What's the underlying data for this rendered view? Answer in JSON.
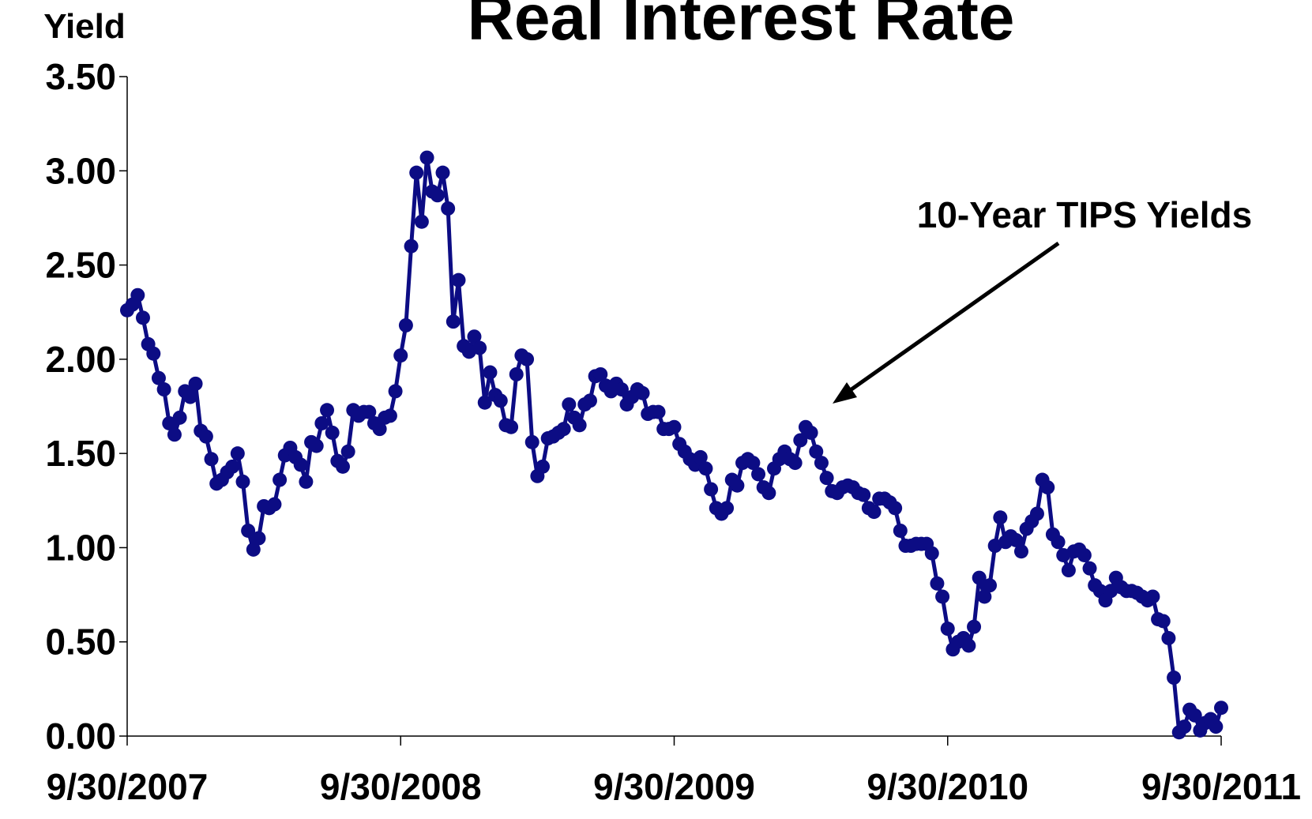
{
  "chart_data": {
    "type": "line",
    "title": "Real Interest Rate",
    "y_label": "Yield",
    "annotation": "10-Year TIPS Yields",
    "categories": [
      "9/30/2007",
      null,
      null,
      null,
      null,
      null,
      null,
      null,
      null,
      null,
      null,
      null,
      null,
      null,
      null,
      null,
      null,
      null,
      null,
      null,
      null,
      null,
      null,
      null,
      null,
      null,
      null,
      null,
      null,
      null,
      null,
      null,
      null,
      null,
      null,
      null,
      null,
      null,
      null,
      null,
      null,
      null,
      null,
      null,
      null,
      null,
      null,
      null,
      null,
      null,
      null,
      null,
      "9/30/2008",
      null,
      null,
      null,
      null,
      null,
      null,
      null,
      null,
      null,
      null,
      null,
      null,
      null,
      null,
      null,
      null,
      null,
      null,
      null,
      null,
      null,
      null,
      null,
      null,
      null,
      null,
      null,
      null,
      null,
      null,
      null,
      null,
      null,
      null,
      null,
      null,
      null,
      null,
      null,
      null,
      null,
      null,
      null,
      null,
      null,
      null,
      null,
      null,
      null,
      null,
      null,
      "9/30/2009",
      null,
      null,
      null,
      null,
      null,
      null,
      null,
      null,
      null,
      null,
      null,
      null,
      null,
      null,
      null,
      null,
      null,
      null,
      null,
      null,
      null,
      null,
      null,
      null,
      null,
      null,
      null,
      null,
      null,
      null,
      null,
      null,
      null,
      null,
      null,
      null,
      null,
      null,
      null,
      null,
      null,
      null,
      null,
      null,
      null,
      null,
      null,
      null,
      null,
      null,
      null,
      "9/30/2010",
      null,
      null,
      null,
      null,
      null,
      null,
      null,
      null,
      null,
      null,
      null,
      null,
      null,
      null,
      null,
      null,
      null,
      null,
      null,
      null,
      null,
      null,
      null,
      null,
      null,
      null,
      null,
      null,
      null,
      null,
      null,
      null,
      null,
      null,
      null,
      null,
      null,
      null,
      null,
      null,
      null,
      null,
      null,
      null,
      null,
      null,
      null,
      null,
      null,
      null,
      null,
      "9/30/2011"
    ],
    "series": [
      {
        "name": "10-Year TIPS Yields",
        "color": "#0c0c84",
        "values": [
          2.26,
          2.29,
          2.34,
          2.22,
          2.08,
          2.03,
          1.9,
          1.84,
          1.66,
          1.6,
          1.69,
          1.83,
          1.8,
          1.87,
          1.62,
          1.59,
          1.47,
          1.34,
          1.36,
          1.4,
          1.43,
          1.5,
          1.35,
          1.09,
          0.99,
          1.05,
          1.22,
          1.21,
          1.23,
          1.36,
          1.49,
          1.53,
          1.48,
          1.44,
          1.35,
          1.56,
          1.54,
          1.66,
          1.73,
          1.61,
          1.46,
          1.43,
          1.51,
          1.73,
          1.7,
          1.72,
          1.72,
          1.66,
          1.63,
          1.69,
          1.7,
          1.83,
          2.02,
          2.18,
          2.6,
          2.99,
          2.73,
          3.07,
          2.89,
          2.87,
          2.99,
          2.8,
          2.2,
          2.42,
          2.07,
          2.04,
          2.12,
          2.06,
          1.77,
          1.93,
          1.81,
          1.78,
          1.65,
          1.64,
          1.92,
          2.02,
          2.0,
          1.56,
          1.38,
          1.43,
          1.58,
          1.59,
          1.61,
          1.63,
          1.76,
          1.69,
          1.65,
          1.76,
          1.78,
          1.91,
          1.92,
          1.86,
          1.83,
          1.87,
          1.84,
          1.76,
          1.8,
          1.84,
          1.82,
          1.71,
          1.72,
          1.72,
          1.63,
          1.63,
          1.64,
          1.55,
          1.51,
          1.47,
          1.44,
          1.48,
          1.42,
          1.31,
          1.21,
          1.18,
          1.21,
          1.36,
          1.33,
          1.45,
          1.47,
          1.45,
          1.39,
          1.32,
          1.29,
          1.42,
          1.47,
          1.51,
          1.47,
          1.45,
          1.57,
          1.64,
          1.61,
          1.51,
          1.45,
          1.37,
          1.3,
          1.29,
          1.32,
          1.33,
          1.32,
          1.29,
          1.28,
          1.21,
          1.19,
          1.26,
          1.26,
          1.24,
          1.21,
          1.09,
          1.01,
          1.01,
          1.02,
          1.02,
          1.02,
          0.97,
          0.81,
          0.74,
          0.57,
          0.46,
          0.5,
          0.52,
          0.48,
          0.58,
          0.84,
          0.74,
          0.8,
          1.01,
          1.16,
          1.03,
          1.06,
          1.04,
          0.98,
          1.1,
          1.14,
          1.18,
          1.36,
          1.32,
          1.07,
          1.03,
          0.96,
          0.88,
          0.98,
          0.99,
          0.96,
          0.89,
          0.8,
          0.77,
          0.72,
          0.77,
          0.84,
          0.79,
          0.77,
          0.77,
          0.76,
          0.74,
          0.72,
          0.74,
          0.62,
          0.61,
          0.52,
          0.31,
          0.02,
          0.05,
          0.14,
          0.11,
          0.03,
          0.07,
          0.09,
          0.05,
          0.15
        ]
      }
    ],
    "ylim": [
      0,
      3.5
    ],
    "yticks": [
      {
        "value": 0,
        "label": "0.00"
      },
      {
        "value": 0.5,
        "label": "0.50"
      },
      {
        "value": 1,
        "label": "1.00"
      },
      {
        "value": 1.5,
        "label": "1.50"
      },
      {
        "value": 2,
        "label": "2.00"
      },
      {
        "value": 2.5,
        "label": "2.50"
      },
      {
        "value": 3,
        "label": "3.00"
      },
      {
        "value": 3.5,
        "label": "3.50"
      }
    ],
    "grid": false
  }
}
